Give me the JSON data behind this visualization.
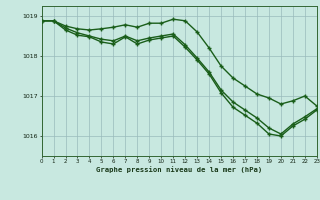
{
  "title": "Graphe pression niveau de la mer (hPa)",
  "bg_color": "#c8e8e0",
  "grid_color": "#99bbbb",
  "line_color": "#1a5e1a",
  "xlim": [
    0,
    23
  ],
  "ylim": [
    1015.5,
    1019.25
  ],
  "yticks": [
    1016,
    1017,
    1018,
    1019
  ],
  "xticks": [
    0,
    1,
    2,
    3,
    4,
    5,
    6,
    7,
    8,
    9,
    10,
    11,
    12,
    13,
    14,
    15,
    16,
    17,
    18,
    19,
    20,
    21,
    22,
    23
  ],
  "s1": [
    1018.88,
    1018.88,
    1018.75,
    1018.68,
    1018.65,
    1018.68,
    1018.72,
    1018.78,
    1018.72,
    1018.82,
    1018.82,
    1018.92,
    1018.88,
    1018.6,
    1018.2,
    1017.75,
    1017.45,
    1017.25,
    1017.05,
    1016.95,
    1016.8,
    1016.88,
    1017.0,
    1016.75
  ],
  "s2": [
    1018.88,
    1018.88,
    1018.7,
    1018.58,
    1018.5,
    1018.42,
    1018.38,
    1018.5,
    1018.38,
    1018.45,
    1018.5,
    1018.55,
    1018.28,
    1017.95,
    1017.6,
    1017.15,
    1016.85,
    1016.65,
    1016.45,
    1016.2,
    1016.05,
    1016.3,
    1016.48,
    1016.68
  ],
  "s3": [
    1018.88,
    1018.88,
    1018.65,
    1018.52,
    1018.48,
    1018.35,
    1018.3,
    1018.48,
    1018.3,
    1018.4,
    1018.45,
    1018.5,
    1018.22,
    1017.9,
    1017.55,
    1017.08,
    1016.72,
    1016.52,
    1016.32,
    1016.05,
    1016.0,
    1016.25,
    1016.42,
    1016.65
  ]
}
